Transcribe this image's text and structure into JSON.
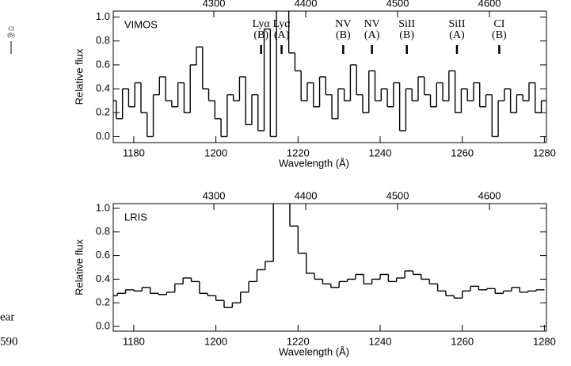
{
  "chart_data": [
    {
      "type": "line",
      "label": "VIMOS",
      "xlabel": "Wavelength (Å)",
      "ylabel": "Relative flux",
      "color": "#000000",
      "xlim": [
        1175,
        1280.5
      ],
      "xticks": [
        1180,
        1200,
        1220,
        1240,
        1260,
        1280
      ],
      "x2lim": [
        4190.5,
        4662
      ],
      "x2ticks": [
        4300,
        4400,
        4500,
        4600
      ],
      "ylim": [
        -0.05,
        1.05
      ],
      "yticks": [
        {
          "value": 0,
          "label": "0.0"
        },
        0.2,
        0.4,
        0.6,
        0.8,
        {
          "value": 1,
          "label": "1.0"
        }
      ],
      "annotations": [
        {
          "line": "Lyα",
          "component": "(B)",
          "x": 1211
        },
        {
          "line": "Lyα",
          "component": "(A)",
          "x": 1216
        },
        {
          "line": "NV",
          "component": "(B)",
          "x": 1231
        },
        {
          "line": "NV",
          "component": "(A)",
          "x": 1238
        },
        {
          "line": "SiII",
          "component": "(B)",
          "x": 1246.5
        },
        {
          "line": "SiII",
          "component": "(A)",
          "x": 1258.7
        },
        {
          "line": "CI",
          "component": "(B)",
          "x": 1269
        }
      ],
      "x": [
        1175,
        1176.5,
        1178,
        1179.5,
        1181,
        1182.5,
        1184,
        1185.5,
        1187,
        1188.5,
        1190,
        1191.5,
        1193,
        1194.5,
        1196,
        1197.5,
        1199,
        1200.5,
        1202,
        1203.5,
        1205,
        1206.5,
        1208,
        1209.5,
        1211,
        1212.5,
        1214,
        1215.5,
        1217,
        1218.5,
        1220,
        1221.5,
        1223,
        1224.5,
        1226,
        1227.5,
        1229,
        1230.5,
        1232,
        1233.5,
        1235,
        1236.5,
        1238,
        1239.5,
        1241,
        1242.5,
        1244,
        1245.5,
        1247,
        1248.5,
        1250,
        1251.5,
        1253,
        1254.5,
        1256,
        1257.5,
        1259,
        1260.5,
        1262,
        1263.5,
        1265,
        1266.5,
        1268,
        1269.5,
        1271,
        1272.5,
        1274,
        1275.5,
        1277,
        1278.5,
        1280
      ],
      "values": [
        0.3,
        0.15,
        0.4,
        0.25,
        0.45,
        0.2,
        0.0,
        0.35,
        0.5,
        0.3,
        0.25,
        0.45,
        0.2,
        0.6,
        0.75,
        0.4,
        0.3,
        0.15,
        0.0,
        0.35,
        0.3,
        0.5,
        0.1,
        0.35,
        0.05,
        0.9,
        0.0,
        1.3,
        1.2,
        0.7,
        0.55,
        0.3,
        0.45,
        0.25,
        0.5,
        0.35,
        0.15,
        0.4,
        0.3,
        0.6,
        0.35,
        0.2,
        0.55,
        0.3,
        0.4,
        0.25,
        0.45,
        0.05,
        0.4,
        0.3,
        0.5,
        0.35,
        0.25,
        0.45,
        0.3,
        0.55,
        0.2,
        0.4,
        0.3,
        0.45,
        0.25,
        0.35,
        0.0,
        0.3,
        0.4,
        0.2,
        0.35,
        0.3,
        0.45,
        0.2,
        0.3
      ]
    },
    {
      "type": "line",
      "label": "LRIS",
      "xlabel": "Wavelength (Å)",
      "ylabel": "Relative flux",
      "color": "#000000",
      "xlim": [
        1175,
        1280.5
      ],
      "xticks": [
        1180,
        1200,
        1220,
        1240,
        1260,
        1280
      ],
      "x2lim": [
        4190.5,
        4662
      ],
      "x2ticks": [
        4300,
        4400,
        4500,
        4600
      ],
      "ylim": [
        -0.04,
        1.04
      ],
      "yticks": [
        {
          "value": 0,
          "label": "0.0"
        },
        0.2,
        0.4,
        0.6,
        0.8,
        {
          "value": 1,
          "label": "1.0"
        }
      ],
      "x": [
        1175,
        1177,
        1179,
        1181,
        1183,
        1185,
        1187,
        1189,
        1191,
        1193,
        1195,
        1197,
        1199,
        1201,
        1203,
        1205,
        1207,
        1209,
        1211,
        1213,
        1215,
        1217,
        1219,
        1221,
        1223,
        1225,
        1227,
        1229,
        1231,
        1233,
        1235,
        1237,
        1239,
        1241,
        1243,
        1245,
        1247,
        1249,
        1251,
        1253,
        1255,
        1257,
        1259,
        1261,
        1263,
        1265,
        1267,
        1269,
        1271,
        1273,
        1275,
        1277,
        1279
      ],
      "values": [
        0.26,
        0.28,
        0.31,
        0.3,
        0.33,
        0.28,
        0.27,
        0.29,
        0.36,
        0.41,
        0.38,
        0.28,
        0.26,
        0.22,
        0.16,
        0.2,
        0.29,
        0.38,
        0.48,
        0.55,
        1.1,
        1.2,
        0.85,
        0.62,
        0.45,
        0.4,
        0.36,
        0.33,
        0.38,
        0.4,
        0.44,
        0.36,
        0.4,
        0.44,
        0.38,
        0.41,
        0.47,
        0.44,
        0.4,
        0.36,
        0.3,
        0.26,
        0.24,
        0.3,
        0.34,
        0.31,
        0.32,
        0.28,
        0.3,
        0.33,
        0.29,
        0.3,
        0.31
      ]
    }
  ],
  "fragments": {
    "top": [
      "CI",
      "(B)"
    ],
    "bottom": [
      "ear",
      "590"
    ]
  }
}
